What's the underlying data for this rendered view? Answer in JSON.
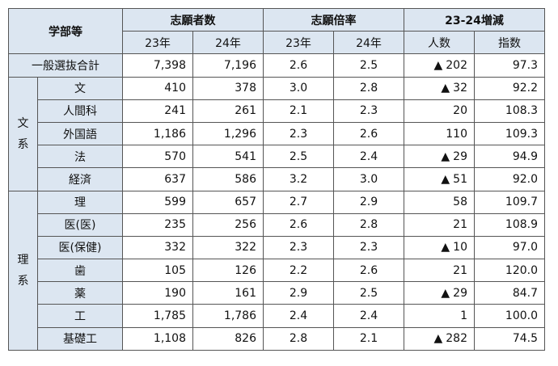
{
  "header": {
    "dept": "学部等",
    "applicants": "志願者数",
    "ratio": "志願倍率",
    "change": "23-24増減",
    "y23": "23年",
    "y24": "24年",
    "people": "人数",
    "index": "指数"
  },
  "total": {
    "label": "一般選抜合計",
    "a23": "7,398",
    "a24": "7,196",
    "r23": "2.6",
    "r24": "2.5",
    "mark": "▲",
    "diff": "202",
    "idx": "97.3"
  },
  "groups": [
    {
      "label": "文系",
      "rows": [
        {
          "dept": "文",
          "a23": "410",
          "a24": "378",
          "r23": "3.0",
          "r24": "2.8",
          "mark": "▲",
          "diff": "32",
          "idx": "92.2"
        },
        {
          "dept": "人間科",
          "a23": "241",
          "a24": "261",
          "r23": "2.1",
          "r24": "2.3",
          "mark": "",
          "diff": "20",
          "idx": "108.3"
        },
        {
          "dept": "外国語",
          "a23": "1,186",
          "a24": "1,296",
          "r23": "2.3",
          "r24": "2.6",
          "mark": "",
          "diff": "110",
          "idx": "109.3"
        },
        {
          "dept": "法",
          "a23": "570",
          "a24": "541",
          "r23": "2.5",
          "r24": "2.4",
          "mark": "▲",
          "diff": "29",
          "idx": "94.9"
        },
        {
          "dept": "経済",
          "a23": "637",
          "a24": "586",
          "r23": "3.2",
          "r24": "3.0",
          "mark": "▲",
          "diff": "51",
          "idx": "92.0"
        }
      ]
    },
    {
      "label": "理系",
      "rows": [
        {
          "dept": "理",
          "a23": "599",
          "a24": "657",
          "r23": "2.7",
          "r24": "2.9",
          "mark": "",
          "diff": "58",
          "idx": "109.7"
        },
        {
          "dept": "医(医)",
          "a23": "235",
          "a24": "256",
          "r23": "2.6",
          "r24": "2.8",
          "mark": "",
          "diff": "21",
          "idx": "108.9"
        },
        {
          "dept": "医(保健)",
          "a23": "332",
          "a24": "322",
          "r23": "2.3",
          "r24": "2.3",
          "mark": "▲",
          "diff": "10",
          "idx": "97.0"
        },
        {
          "dept": "歯",
          "a23": "105",
          "a24": "126",
          "r23": "2.2",
          "r24": "2.6",
          "mark": "",
          "diff": "21",
          "idx": "120.0"
        },
        {
          "dept": "薬",
          "a23": "190",
          "a24": "161",
          "r23": "2.9",
          "r24": "2.5",
          "mark": "▲",
          "diff": "29",
          "idx": "84.7"
        },
        {
          "dept": "工",
          "a23": "1,785",
          "a24": "1,786",
          "r23": "2.4",
          "r24": "2.4",
          "mark": "",
          "diff": "1",
          "idx": "100.0"
        },
        {
          "dept": "基礎工",
          "a23": "1,108",
          "a24": "826",
          "r23": "2.8",
          "r24": "2.1",
          "mark": "▲",
          "diff": "282",
          "idx": "74.5"
        }
      ]
    }
  ]
}
